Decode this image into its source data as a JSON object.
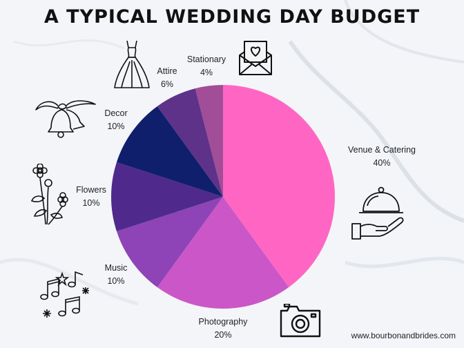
{
  "title": "A TYPICAL WEDDING DAY BUDGET",
  "footer": "www.bourbonandbrides.com",
  "chart_data": {
    "type": "pie",
    "title": "A TYPICAL WEDDING DAY BUDGET",
    "start_angle_deg": 0,
    "direction": "clockwise",
    "slices": [
      {
        "label": "Venue & Catering",
        "value": 40,
        "display": "40%",
        "color": "#ff66c4"
      },
      {
        "label": "Photography",
        "value": 20,
        "display": "20%",
        "color": "#cb56c7"
      },
      {
        "label": "Music",
        "value": 10,
        "display": "10%",
        "color": "#8e44b6"
      },
      {
        "label": "Flowers",
        "value": 10,
        "display": "10%",
        "color": "#4f2a8c"
      },
      {
        "label": "Decor",
        "value": 10,
        "display": "10%",
        "color": "#0f1f6b"
      },
      {
        "label": "Attire",
        "value": 6,
        "display": "6%",
        "color": "#5e3289"
      },
      {
        "label": "Stationary",
        "value": 4,
        "display": "4%",
        "color": "#a14d98"
      }
    ]
  },
  "icons": [
    "stationery-envelope-icon",
    "wedding-dress-icon",
    "wedding-bells-icon",
    "flowers-icon",
    "music-notes-icon",
    "camera-icon",
    "serving-cloche-icon"
  ]
}
